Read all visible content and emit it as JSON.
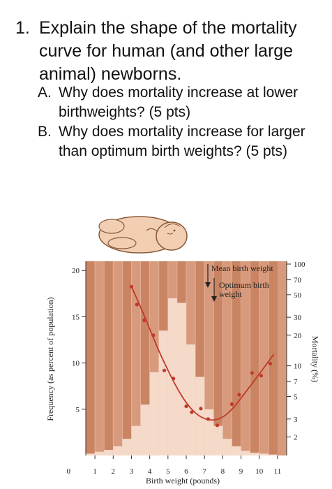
{
  "question": {
    "number": "1.",
    "text": "Explain the shape of the mortality curve for human (and other large animal) newborns.",
    "parts": [
      {
        "letter": "A.",
        "text": "Why does mortality increase at lower birthweights? (5 pts)"
      },
      {
        "letter": "B.",
        "text": "Why does mortality increase for larger than optimum birth weights? (5 pts)"
      }
    ]
  },
  "chart_data": {
    "type": "bar",
    "xlabel": "Birth weight (pounds)",
    "ylabel": "Frequency (as percent of population)",
    "y2label": "Mortality (%)",
    "x_ticks": [
      "1",
      "2",
      "3",
      "4",
      "5",
      "6",
      "7",
      "8",
      "9",
      "10",
      "11"
    ],
    "y_ticks": [
      "0",
      "5",
      "10",
      "15",
      "20"
    ],
    "y2_ticks": [
      "100",
      "70",
      "50",
      "30",
      "20",
      "10",
      "7",
      "5",
      "3",
      "2"
    ],
    "ylim": [
      0,
      21
    ],
    "y2_scale": "log",
    "bars_x_start": 0.5,
    "bar_width": 0.5,
    "frequency_values": [
      0.2,
      0.4,
      0.6,
      1.0,
      1.8,
      3.2,
      5.5,
      9.0,
      13.5,
      17.0,
      16.5,
      12.0,
      8.5,
      5.0,
      3.2,
      1.8,
      1.0,
      0.5,
      0.3,
      0.2,
      0.1
    ],
    "mortality_points": [
      {
        "x": 3.0,
        "y": 60
      },
      {
        "x": 3.3,
        "y": 40
      },
      {
        "x": 3.7,
        "y": 28
      },
      {
        "x": 4.2,
        "y": 20
      },
      {
        "x": 4.8,
        "y": 9
      },
      {
        "x": 5.3,
        "y": 7.5
      },
      {
        "x": 6.0,
        "y": 4.0
      },
      {
        "x": 6.3,
        "y": 3.5
      },
      {
        "x": 6.8,
        "y": 3.8
      },
      {
        "x": 7.2,
        "y": 3.0
      },
      {
        "x": 7.7,
        "y": 2.6
      },
      {
        "x": 8.5,
        "y": 4.2
      },
      {
        "x": 8.9,
        "y": 5.2
      },
      {
        "x": 9.6,
        "y": 8.5
      },
      {
        "x": 10.1,
        "y": 8.0
      },
      {
        "x": 10.6,
        "y": 10.5
      }
    ],
    "mortality_curve": [
      {
        "x": 3.0,
        "y": 60
      },
      {
        "x": 3.5,
        "y": 38
      },
      {
        "x": 4.0,
        "y": 23
      },
      {
        "x": 4.5,
        "y": 14
      },
      {
        "x": 5.0,
        "y": 9
      },
      {
        "x": 5.5,
        "y": 6
      },
      {
        "x": 6.0,
        "y": 4.3
      },
      {
        "x": 6.5,
        "y": 3.4
      },
      {
        "x": 7.0,
        "y": 3.0
      },
      {
        "x": 7.5,
        "y": 2.9
      },
      {
        "x": 8.0,
        "y": 3.1
      },
      {
        "x": 8.5,
        "y": 3.7
      },
      {
        "x": 9.0,
        "y": 4.8
      },
      {
        "x": 9.5,
        "y": 6.3
      },
      {
        "x": 10.0,
        "y": 8.3
      },
      {
        "x": 10.5,
        "y": 11
      },
      {
        "x": 10.8,
        "y": 13
      }
    ],
    "annotations": [
      {
        "text": "Mean birth weight",
        "x": 7.0
      },
      {
        "text": "Optimum birth weight",
        "x": 7.6
      }
    ],
    "colors": {
      "background": "#d79a7c",
      "stripe": "#c98563",
      "bars": "#f5d9c9",
      "curve": "#c0392b",
      "axis": "#333333"
    }
  }
}
